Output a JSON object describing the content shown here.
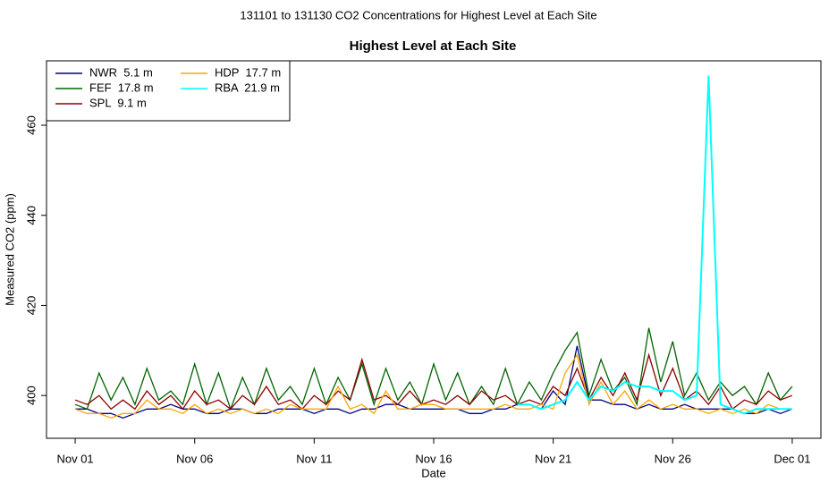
{
  "chart_data": {
    "type": "line",
    "title": "131101  to  131130 CO2 Concentrations for Highest Level at Each Site",
    "subtitle": "Highest Level at Each Site",
    "x_label": "Date",
    "y_label": "Measured CO2 (ppm)",
    "x": [
      0,
      0.5,
      1,
      1.5,
      2,
      2.5,
      3,
      3.5,
      4,
      4.5,
      5,
      5.5,
      6,
      6.5,
      7,
      7.5,
      8,
      8.5,
      9,
      9.5,
      10,
      10.5,
      11,
      11.5,
      12,
      12.5,
      13,
      13.5,
      14,
      14.5,
      15,
      15.5,
      16,
      16.5,
      17,
      17.5,
      18,
      18.5,
      19,
      19.5,
      20,
      20.5,
      21,
      21.5,
      22,
      22.5,
      23,
      23.5,
      24,
      24.5,
      25,
      25.5,
      26,
      26.5,
      27,
      27.5,
      28,
      28.5,
      29,
      29.5,
      30
    ],
    "xlim": [
      -1.2,
      31.2
    ],
    "xticks": [
      {
        "value": 0,
        "label": "Nov 01"
      },
      {
        "value": 5,
        "label": "Nov 06"
      },
      {
        "value": 10,
        "label": "Nov 11"
      },
      {
        "value": 15,
        "label": "Nov 16"
      },
      {
        "value": 20,
        "label": "Nov 21"
      },
      {
        "value": 25,
        "label": "Nov 26"
      },
      {
        "value": 30,
        "label": "Dec 01"
      }
    ],
    "ylim": [
      390.5,
      474.3
    ],
    "yticks": [
      400,
      420,
      440,
      460
    ],
    "legend": "top-left",
    "series": [
      {
        "name": "NWR  5.1 m",
        "color": "#000080",
        "values": [
          397,
          397,
          396,
          396,
          395,
          396,
          397,
          397,
          398,
          397,
          397,
          396,
          396,
          397,
          397,
          396,
          396,
          397,
          397,
          397,
          396,
          397,
          397,
          396,
          397,
          397,
          398,
          398,
          397,
          397,
          397,
          397,
          397,
          396,
          396,
          397,
          397,
          398,
          398,
          397,
          401,
          398,
          411,
          399,
          399,
          398,
          398,
          397,
          398,
          397,
          397,
          398,
          397,
          397,
          397,
          397,
          396,
          396,
          397,
          396,
          397
        ]
      },
      {
        "name": "FEF  17.8 m",
        "color": "#006400",
        "values": [
          398,
          397,
          405,
          399,
          404,
          398,
          406,
          399,
          401,
          398,
          407,
          398,
          405,
          397,
          404,
          398,
          406,
          399,
          402,
          398,
          406,
          398,
          404,
          399,
          407,
          398,
          406,
          399,
          403,
          398,
          407,
          399,
          405,
          398,
          402,
          398,
          406,
          398,
          403,
          399,
          405,
          410,
          414,
          400,
          408,
          401,
          404,
          398,
          415,
          403,
          412,
          400,
          405,
          399,
          403,
          400,
          402,
          398,
          405,
          399,
          402
        ]
      },
      {
        "name": "SPL  9.1 m",
        "color": "#8b0000",
        "values": [
          399,
          398,
          400,
          397,
          399,
          397,
          401,
          398,
          400,
          397,
          401,
          398,
          399,
          397,
          400,
          398,
          402,
          398,
          399,
          397,
          400,
          398,
          401,
          399,
          408,
          399,
          400,
          398,
          401,
          398,
          399,
          398,
          400,
          398,
          401,
          399,
          400,
          398,
          399,
          398,
          402,
          400,
          406,
          399,
          404,
          400,
          405,
          399,
          409,
          400,
          406,
          399,
          401,
          398,
          402,
          397,
          399,
          398,
          401,
          399,
          400
        ]
      },
      {
        "name": "HDP  17.7 m",
        "color": "#ffa500",
        "values": [
          397,
          396,
          396,
          395,
          396,
          396,
          399,
          397,
          397,
          396,
          398,
          396,
          397,
          396,
          397,
          396,
          397,
          396,
          398,
          397,
          397,
          397,
          402,
          397,
          398,
          396,
          401,
          397,
          397,
          398,
          398,
          397,
          397,
          397,
          397,
          397,
          398,
          397,
          397,
          398,
          397,
          405,
          409,
          398,
          403,
          398,
          401,
          397,
          399,
          397,
          398,
          397,
          397,
          396,
          397,
          396,
          397,
          396,
          398,
          397,
          397
        ]
      },
      {
        "name": "RBA  21.9 m",
        "color": "#00ffff",
        "values": [
          null,
          null,
          null,
          null,
          null,
          null,
          null,
          null,
          null,
          null,
          null,
          null,
          null,
          null,
          null,
          null,
          null,
          null,
          null,
          null,
          null,
          null,
          null,
          null,
          null,
          null,
          null,
          null,
          null,
          null,
          null,
          null,
          null,
          null,
          null,
          null,
          null,
          398,
          398,
          397,
          398,
          399,
          403,
          399,
          402,
          401,
          403,
          402,
          402,
          401,
          401,
          399,
          400,
          471,
          398,
          397,
          396,
          397,
          397,
          397,
          397
        ]
      }
    ]
  }
}
